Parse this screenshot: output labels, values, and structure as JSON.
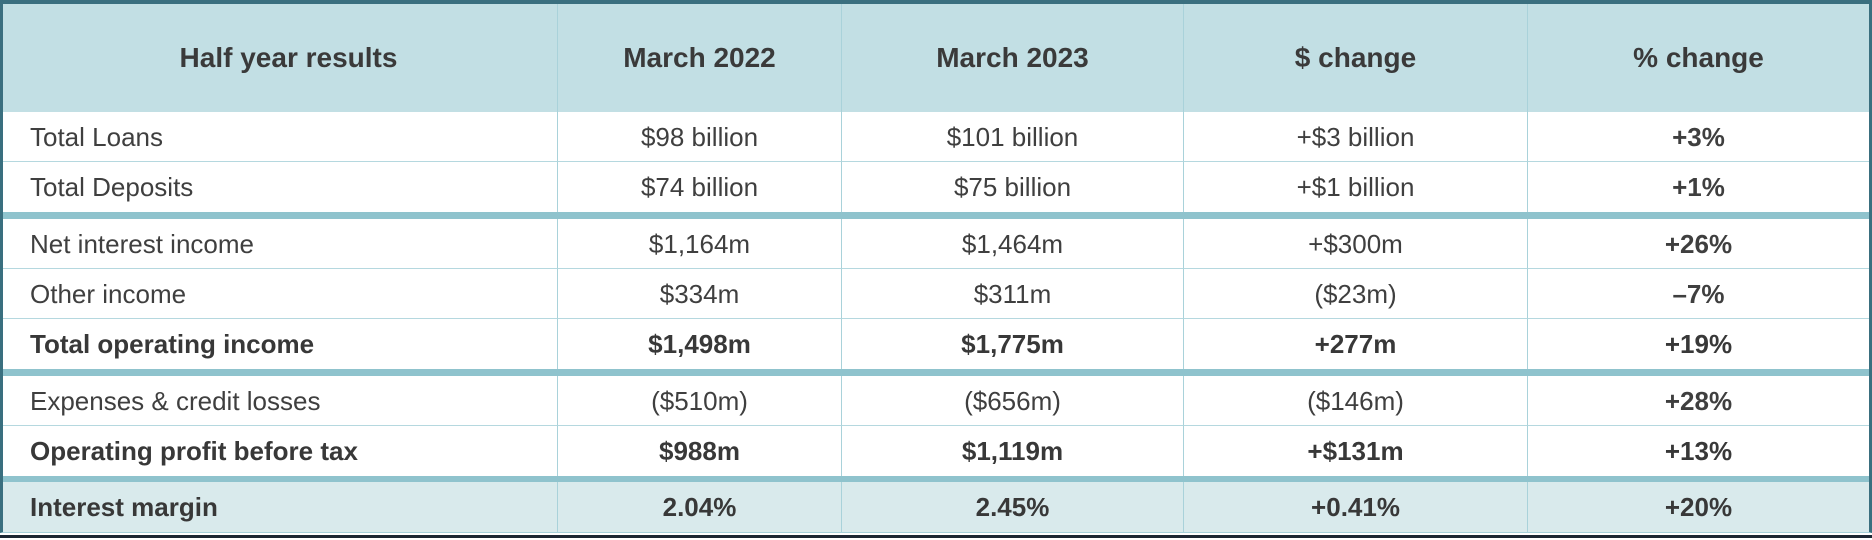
{
  "chart_data": {
    "type": "table",
    "title": "Half year results",
    "columns": [
      "Half year results",
      "March 2022",
      "March 2023",
      "$ change",
      "% change"
    ],
    "rows": [
      {
        "cells": [
          "Total Loans",
          "$98 billion",
          "$101 billion",
          "+$3 billion",
          "+3%"
        ],
        "bold": false,
        "highlight": false,
        "thick_divider_after": false
      },
      {
        "cells": [
          "Total Deposits",
          "$74 billion",
          "$75 billion",
          "+$1 billion",
          "+1%"
        ],
        "bold": false,
        "highlight": false,
        "thick_divider_after": true
      },
      {
        "cells": [
          "Net interest income",
          "$1,164m",
          "$1,464m",
          "+$300m",
          "+26%"
        ],
        "bold": false,
        "highlight": false,
        "thick_divider_after": false
      },
      {
        "cells": [
          "Other income",
          "$334m",
          "$311m",
          "($23m)",
          "–7%"
        ],
        "bold": false,
        "highlight": false,
        "thick_divider_after": false
      },
      {
        "cells": [
          "Total operating income",
          "$1,498m",
          "$1,775m",
          "+277m",
          "+19%"
        ],
        "bold": true,
        "highlight": false,
        "thick_divider_after": true
      },
      {
        "cells": [
          "Expenses & credit losses",
          "($510m)",
          "($656m)",
          "($146m)",
          "+28%"
        ],
        "bold": false,
        "highlight": false,
        "thick_divider_after": false
      },
      {
        "cells": [
          "Operating profit before tax",
          "$988m",
          "$1,119m",
          "+$131m",
          "+13%"
        ],
        "bold": true,
        "highlight": false,
        "thick_divider_after": true
      },
      {
        "cells": [
          "Interest margin",
          "2.04%",
          "2.45%",
          "+0.41%",
          "+20%"
        ],
        "bold": true,
        "highlight": true,
        "thick_divider_after": false
      }
    ],
    "layout": {
      "first_column_align": "left",
      "other_columns_align": "center",
      "percent_change_column_bold": true,
      "grid_on": true
    }
  },
  "colors": {
    "header_bg": "#c2dfe4",
    "highlight_row_bg": "#d9eaec",
    "grid_line": "#a9d2da",
    "thick_divider": "#8fc3cd",
    "frame_border": "#3a6f7f",
    "bottom_rule": "#1c2733",
    "text": "#3f3f3f"
  }
}
